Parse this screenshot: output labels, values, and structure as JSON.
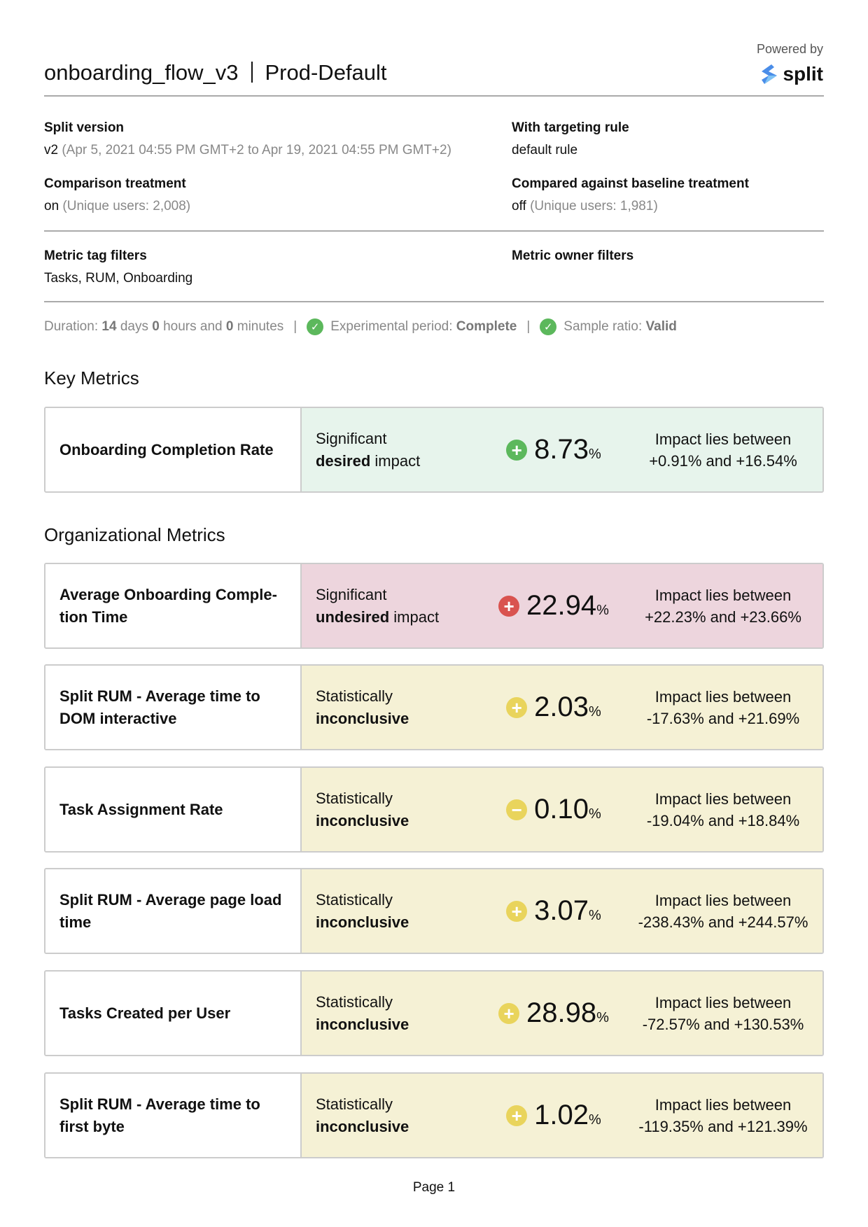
{
  "header": {
    "split_name": "onboarding_flow_v3",
    "environment": "Prod-Default",
    "powered_by": "Powered by",
    "logo_text": "split"
  },
  "info": {
    "split_version_label": "Split version",
    "split_version_value": "v2",
    "split_version_range": "(Apr 5, 2021 04:55 PM GMT+2 to Apr 19, 2021 04:55 PM GMT+2)",
    "targeting_label": "With targeting rule",
    "targeting_value": "default rule",
    "comparison_label": "Comparison treatment",
    "comparison_value": "on",
    "comparison_users": "(Unique users: 2,008)",
    "baseline_label": "Compared against baseline treatment",
    "baseline_value": "off",
    "baseline_users": "(Unique users: 1,981)",
    "tag_filters_label": "Metric tag filters",
    "tag_filters_value": "Tasks, RUM, Onboarding",
    "owner_filters_label": "Metric owner filters"
  },
  "status": {
    "duration_prefix": "Duration:",
    "days": "14",
    "days_word": "days",
    "hours": "0",
    "hours_word": "hours and",
    "minutes": "0",
    "minutes_word": "minutes",
    "period_label": "Experimental period:",
    "period_value": "Complete",
    "ratio_label": "Sample ratio:",
    "ratio_value": "Valid"
  },
  "colors": {
    "desired_bg": "#e7f4ec",
    "undesired_bg": "#edd5dd",
    "inconclusive_bg": "#f5f1d5",
    "green": "#5cb85c",
    "red": "#d9534f",
    "yellow": "#e9d45c"
  },
  "key_metrics_title": "Key Metrics",
  "org_metrics_title": "Organizational Metrics",
  "key_metrics": [
    {
      "name": "Onboarding Completion Rate",
      "sig_line1": "Significant",
      "sig_bold": "desired",
      "sig_rest": " impact",
      "value": "8.73",
      "unit": "%",
      "icon": "plus-circle-icon",
      "kind": "desired",
      "range_line1": "Impact lies between",
      "range_line2": "+0.91% and +16.54%"
    }
  ],
  "org_metrics": [
    {
      "name": "Average Onboarding Comple-tion Time",
      "sig_line1": "Significant",
      "sig_bold": "undesired",
      "sig_rest": " impact",
      "value": "22.94",
      "unit": "%",
      "icon": "plus-circle-icon",
      "kind": "undesired",
      "range_line1": "Impact lies between",
      "range_line2": "+22.23% and +23.66%"
    },
    {
      "name": "Split RUM - Average time to DOM interactive",
      "sig_line1": "Statistically",
      "sig_bold": "inconclusive",
      "sig_rest": "",
      "value": "2.03",
      "unit": "%",
      "icon": "plus-circle-icon",
      "kind": "inconclusive",
      "range_line1": "Impact lies between",
      "range_line2": "-17.63% and +21.69%"
    },
    {
      "name": "Task Assignment Rate",
      "sig_line1": "Statistically",
      "sig_bold": "inconclusive",
      "sig_rest": "",
      "value": "0.10",
      "unit": "%",
      "icon": "minus-circle-icon",
      "kind": "inconclusive",
      "range_line1": "Impact lies between",
      "range_line2": "-19.04% and +18.84%"
    },
    {
      "name": "Split RUM - Average page load time",
      "sig_line1": "Statistically",
      "sig_bold": "inconclusive",
      "sig_rest": "",
      "value": "3.07",
      "unit": "%",
      "icon": "plus-circle-icon",
      "kind": "inconclusive",
      "range_line1": "Impact lies between",
      "range_line2": "-238.43% and +244.57%"
    },
    {
      "name": "Tasks Created per User",
      "sig_line1": "Statistically",
      "sig_bold": "inconclusive",
      "sig_rest": "",
      "value": "28.98",
      "unit": "%",
      "icon": "plus-circle-icon",
      "kind": "inconclusive",
      "range_line1": "Impact lies between",
      "range_line2": "-72.57% and +130.53%"
    },
    {
      "name": "Split RUM - Average time to first byte",
      "sig_line1": "Statistically",
      "sig_bold": "inconclusive",
      "sig_rest": "",
      "value": "1.02",
      "unit": "%",
      "icon": "plus-circle-icon",
      "kind": "inconclusive",
      "range_line1": "Impact lies between",
      "range_line2": "-119.35% and +121.39%"
    }
  ],
  "footer": {
    "page": "Page 1"
  }
}
